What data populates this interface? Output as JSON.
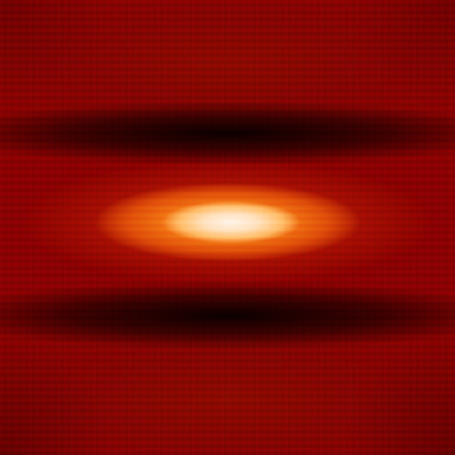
{
  "image": {
    "colormap": "hot",
    "colors": {
      "background_red": "#8c0202",
      "dark_node": "#000000",
      "core_orange": "#f47e14",
      "core_white": "#fff4ea"
    }
  }
}
